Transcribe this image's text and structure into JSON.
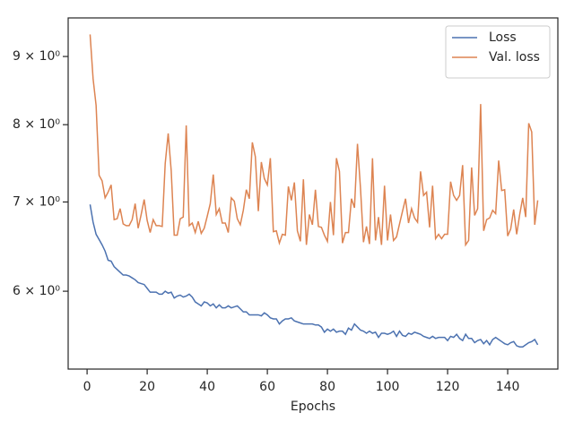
{
  "chart_data": {
    "type": "line",
    "xlabel": "Epochs",
    "x": [
      1,
      2,
      3,
      4,
      5,
      6,
      7,
      8,
      9,
      10,
      11,
      12,
      13,
      14,
      15,
      16,
      17,
      18,
      19,
      20,
      21,
      22,
      23,
      24,
      25,
      26,
      27,
      28,
      29,
      30,
      31,
      32,
      33,
      34,
      35,
      36,
      37,
      38,
      39,
      40,
      41,
      42,
      43,
      44,
      45,
      46,
      47,
      48,
      49,
      50,
      51,
      52,
      53,
      54,
      55,
      56,
      57,
      58,
      59,
      60,
      61,
      62,
      63,
      64,
      65,
      66,
      67,
      68,
      69,
      70,
      71,
      72,
      73,
      74,
      75,
      76,
      77,
      78,
      79,
      80,
      81,
      82,
      83,
      84,
      85,
      86,
      87,
      88,
      89,
      90,
      91,
      92,
      93,
      94,
      95,
      96,
      97,
      98,
      99,
      100,
      101,
      102,
      103,
      104,
      105,
      106,
      107,
      108,
      109,
      110,
      111,
      112,
      113,
      114,
      115,
      116,
      117,
      118,
      119,
      120,
      121,
      122,
      123,
      124,
      125,
      126,
      127,
      128,
      129,
      130,
      131,
      132,
      133,
      134,
      135,
      136,
      137,
      138,
      139,
      140,
      141,
      142,
      143,
      144,
      145,
      146,
      147,
      148,
      149,
      150
    ],
    "series": [
      {
        "name": "Loss",
        "color": "#4c72b0",
        "values": [
          6.97,
          6.76,
          6.62,
          6.56,
          6.5,
          6.43,
          6.33,
          6.32,
          6.26,
          6.23,
          6.2,
          6.17,
          6.17,
          6.16,
          6.14,
          6.12,
          6.09,
          6.08,
          6.07,
          6.03,
          5.99,
          5.99,
          5.99,
          5.97,
          5.97,
          6.0,
          5.98,
          5.99,
          5.93,
          5.95,
          5.96,
          5.94,
          5.95,
          5.97,
          5.94,
          5.89,
          5.87,
          5.85,
          5.89,
          5.88,
          5.85,
          5.87,
          5.83,
          5.86,
          5.83,
          5.83,
          5.85,
          5.83,
          5.84,
          5.85,
          5.82,
          5.79,
          5.79,
          5.76,
          5.76,
          5.76,
          5.76,
          5.75,
          5.78,
          5.76,
          5.73,
          5.72,
          5.72,
          5.67,
          5.7,
          5.72,
          5.72,
          5.73,
          5.7,
          5.69,
          5.68,
          5.67,
          5.67,
          5.67,
          5.67,
          5.66,
          5.66,
          5.64,
          5.59,
          5.62,
          5.6,
          5.62,
          5.59,
          5.6,
          5.6,
          5.57,
          5.63,
          5.61,
          5.67,
          5.64,
          5.61,
          5.6,
          5.58,
          5.6,
          5.58,
          5.59,
          5.54,
          5.58,
          5.58,
          5.57,
          5.58,
          5.6,
          5.55,
          5.6,
          5.56,
          5.55,
          5.58,
          5.57,
          5.59,
          5.58,
          5.57,
          5.55,
          5.54,
          5.53,
          5.55,
          5.53,
          5.54,
          5.54,
          5.54,
          5.51,
          5.55,
          5.54,
          5.57,
          5.53,
          5.51,
          5.57,
          5.53,
          5.53,
          5.49,
          5.51,
          5.52,
          5.48,
          5.51,
          5.47,
          5.52,
          5.54,
          5.52,
          5.5,
          5.48,
          5.47,
          5.49,
          5.5,
          5.46,
          5.45,
          5.45,
          5.47,
          5.49,
          5.5,
          5.52,
          5.47
        ]
      },
      {
        "name": "Val. loss",
        "color": "#dd8452",
        "values": [
          9.35,
          8.66,
          8.27,
          7.33,
          7.26,
          7.05,
          7.12,
          7.21,
          6.79,
          6.8,
          6.92,
          6.74,
          6.72,
          6.72,
          6.79,
          6.98,
          6.69,
          6.85,
          7.03,
          6.78,
          6.64,
          6.79,
          6.72,
          6.72,
          6.71,
          7.48,
          7.88,
          7.39,
          6.61,
          6.61,
          6.8,
          6.82,
          7.99,
          6.72,
          6.75,
          6.64,
          6.77,
          6.63,
          6.69,
          6.83,
          6.98,
          7.34,
          6.85,
          6.92,
          6.75,
          6.75,
          6.64,
          7.05,
          7.01,
          6.8,
          6.73,
          6.9,
          7.15,
          7.04,
          7.76,
          7.57,
          6.89,
          7.5,
          7.29,
          7.21,
          7.55,
          6.65,
          6.66,
          6.52,
          6.62,
          6.61,
          7.19,
          7.02,
          7.24,
          6.66,
          6.54,
          7.28,
          6.5,
          6.85,
          6.73,
          7.15,
          6.71,
          6.7,
          6.61,
          6.54,
          7.0,
          6.61,
          7.55,
          7.38,
          6.52,
          6.64,
          6.64,
          7.04,
          6.93,
          7.74,
          7.17,
          6.53,
          6.71,
          6.51,
          7.55,
          6.55,
          6.82,
          6.5,
          7.2,
          6.55,
          6.85,
          6.55,
          6.59,
          6.74,
          6.89,
          7.04,
          6.75,
          6.92,
          6.81,
          6.76,
          7.38,
          7.08,
          7.12,
          6.7,
          7.2,
          6.57,
          6.62,
          6.57,
          6.62,
          6.62,
          7.25,
          7.08,
          7.02,
          7.08,
          7.46,
          6.5,
          6.55,
          7.43,
          6.84,
          6.92,
          8.29,
          6.66,
          6.79,
          6.81,
          6.9,
          6.86,
          7.52,
          7.14,
          7.15,
          6.6,
          6.68,
          6.91,
          6.62,
          6.85,
          7.05,
          6.82,
          8.02,
          7.9,
          6.73,
          7.02
        ]
      }
    ],
    "xlim": [
      -6.3,
      156.7
    ],
    "xticks": [
      0,
      20,
      40,
      60,
      80,
      100,
      120,
      140
    ],
    "ylim": [
      5.245,
      9.62
    ],
    "log_y": true,
    "yticks": [
      {
        "value": 6,
        "label": "6 × 10⁰"
      },
      {
        "value": 7,
        "label": "7 × 10⁰"
      },
      {
        "value": 8,
        "label": "8 × 10⁰"
      },
      {
        "value": 9,
        "label": "9 × 10⁰"
      }
    ],
    "legend": "upper right"
  }
}
